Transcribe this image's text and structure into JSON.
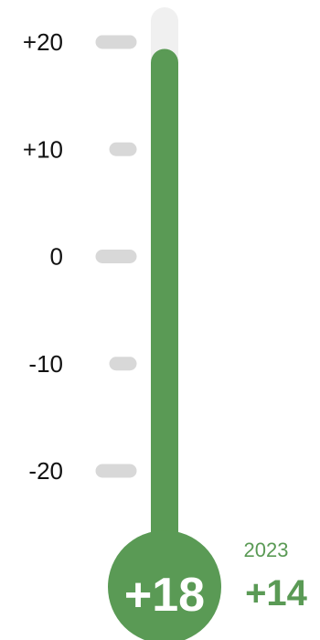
{
  "chart_data": {
    "type": "gauge",
    "title": "",
    "value": 18,
    "value_label": "+18",
    "scale_min": -28,
    "scale_max": 23,
    "ticks": [
      {
        "value": 20,
        "label": "+20",
        "major": true
      },
      {
        "value": 10,
        "label": "+10",
        "major": false
      },
      {
        "value": 0,
        "label": "0",
        "major": true
      },
      {
        "value": -10,
        "label": "-10",
        "major": false
      },
      {
        "value": -20,
        "label": "-20",
        "major": true
      }
    ],
    "comparison": {
      "year": "2023",
      "value": 14,
      "value_label": "+14"
    },
    "grid": false,
    "legend": "none"
  },
  "colors": {
    "fill": "#5a9a55",
    "track": "#f0f0f0",
    "tick": "#d8d8d8",
    "bulb_text": "#ffffff",
    "label": "#111111"
  }
}
